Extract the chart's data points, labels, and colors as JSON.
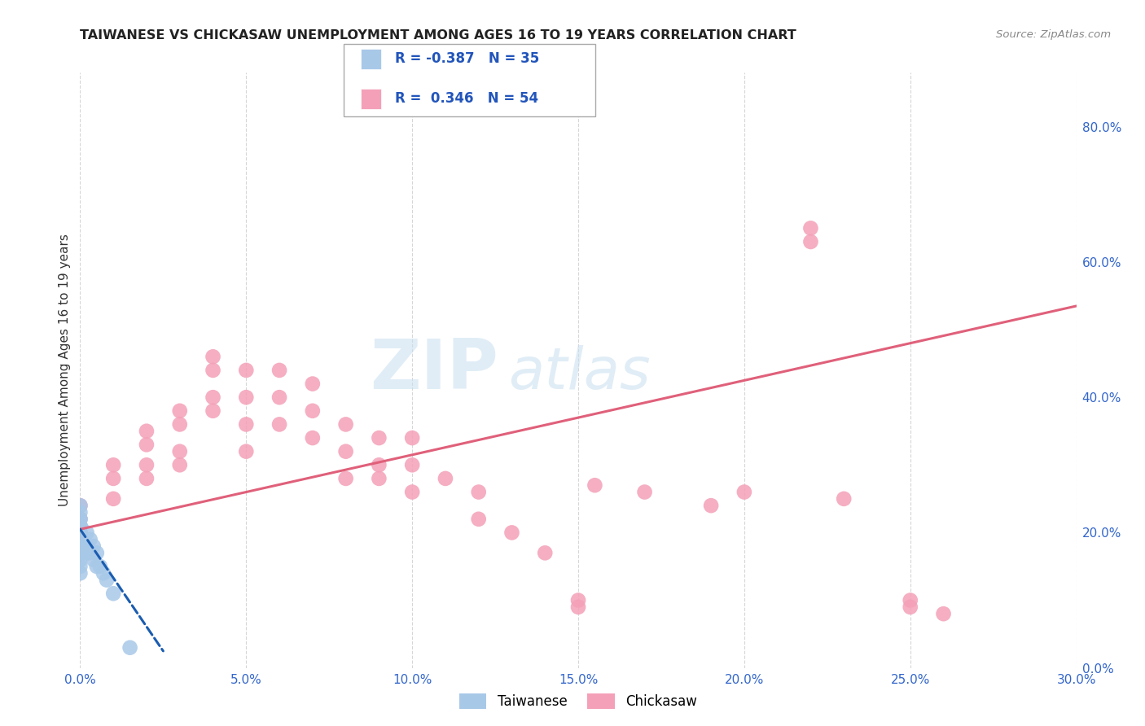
{
  "title": "TAIWANESE VS CHICKASAW UNEMPLOYMENT AMONG AGES 16 TO 19 YEARS CORRELATION CHART",
  "source": "Source: ZipAtlas.com",
  "ylabel": "Unemployment Among Ages 16 to 19 years",
  "xlim": [
    0.0,
    0.3
  ],
  "ylim": [
    0.0,
    0.88
  ],
  "xticks": [
    0.0,
    0.05,
    0.1,
    0.15,
    0.2,
    0.25,
    0.3
  ],
  "xticklabels": [
    "0.0%",
    "5.0%",
    "10.0%",
    "15.0%",
    "20.0%",
    "25.0%",
    "30.0%"
  ],
  "yticks_right": [
    0.0,
    0.2,
    0.4,
    0.6,
    0.8
  ],
  "yticklabels_right": [
    "0.0%",
    "20.0%",
    "40.0%",
    "60.0%",
    "80.0%"
  ],
  "legend_R_taiwanese": "-0.387",
  "legend_N_taiwanese": "35",
  "legend_R_chickasaw": "0.346",
  "legend_N_chickasaw": "54",
  "taiwanese_color": "#a8c8e8",
  "chickasaw_color": "#f4a0b8",
  "taiwanese_line_color": "#1a5cb0",
  "chickasaw_line_color": "#e0607a",
  "watermark_zip": "ZIP",
  "watermark_atlas": "atlas",
  "taiwanese_x": [
    0.0,
    0.0,
    0.0,
    0.0,
    0.0,
    0.0,
    0.0,
    0.0,
    0.0,
    0.0,
    0.0,
    0.0,
    0.0,
    0.0,
    0.0,
    0.0,
    0.0,
    0.0,
    0.0,
    0.0,
    0.0,
    0.002,
    0.002,
    0.002,
    0.003,
    0.003,
    0.004,
    0.004,
    0.005,
    0.005,
    0.006,
    0.007,
    0.008,
    0.01,
    0.015
  ],
  "taiwanese_y": [
    0.24,
    0.23,
    0.22,
    0.21,
    0.21,
    0.2,
    0.2,
    0.19,
    0.19,
    0.18,
    0.17,
    0.22,
    0.2,
    0.19,
    0.21,
    0.19,
    0.18,
    0.17,
    0.16,
    0.15,
    0.14,
    0.2,
    0.18,
    0.17,
    0.19,
    0.17,
    0.18,
    0.16,
    0.17,
    0.15,
    0.15,
    0.14,
    0.13,
    0.11,
    0.03
  ],
  "chickasaw_x": [
    0.0,
    0.0,
    0.0,
    0.01,
    0.01,
    0.01,
    0.02,
    0.02,
    0.02,
    0.02,
    0.03,
    0.03,
    0.03,
    0.03,
    0.04,
    0.04,
    0.04,
    0.04,
    0.05,
    0.05,
    0.05,
    0.05,
    0.06,
    0.06,
    0.06,
    0.07,
    0.07,
    0.07,
    0.08,
    0.08,
    0.08,
    0.09,
    0.09,
    0.09,
    0.1,
    0.1,
    0.1,
    0.11,
    0.12,
    0.12,
    0.13,
    0.14,
    0.15,
    0.15,
    0.155,
    0.17,
    0.19,
    0.2,
    0.22,
    0.22,
    0.23,
    0.25,
    0.25,
    0.26
  ],
  "chickasaw_y": [
    0.24,
    0.22,
    0.2,
    0.3,
    0.28,
    0.25,
    0.35,
    0.33,
    0.3,
    0.28,
    0.38,
    0.36,
    0.32,
    0.3,
    0.46,
    0.44,
    0.4,
    0.38,
    0.44,
    0.4,
    0.36,
    0.32,
    0.44,
    0.4,
    0.36,
    0.42,
    0.38,
    0.34,
    0.36,
    0.32,
    0.28,
    0.34,
    0.3,
    0.28,
    0.34,
    0.3,
    0.26,
    0.28,
    0.26,
    0.22,
    0.2,
    0.17,
    0.1,
    0.09,
    0.27,
    0.26,
    0.24,
    0.26,
    0.65,
    0.63,
    0.25,
    0.1,
    0.09,
    0.08
  ],
  "tw_line_x0": 0.0,
  "tw_line_x1": 0.025,
  "tw_line_y0": 0.205,
  "tw_line_y1": 0.025,
  "ck_line_x0": 0.0,
  "ck_line_x1": 0.3,
  "ck_line_y0": 0.205,
  "ck_line_y1": 0.535
}
